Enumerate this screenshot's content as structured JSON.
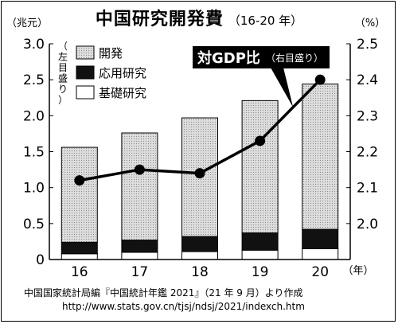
{
  "chart_data": {
    "type": "bar",
    "title": "中国研究開発費",
    "subtitle": "（16-20 年）",
    "categories": [
      "16",
      "17",
      "18",
      "19",
      "20"
    ],
    "x_unit": "（年）",
    "y_left": {
      "unit": "（兆元）",
      "range": [
        0,
        3.0
      ],
      "ticks": [
        "0",
        "0.5",
        "1.0",
        "1.5",
        "2.0",
        "2.5",
        "3.0"
      ],
      "scale_note": "（左目盛り）"
    },
    "y_right": {
      "unit": "（%）",
      "range": [
        1.9,
        2.5
      ],
      "ticks": [
        "2.0",
        "2.1",
        "2.2",
        "2.3",
        "2.4",
        "2.5"
      ]
    },
    "series": [
      {
        "name": "基礎研究",
        "kind": "stacked-bar",
        "color": "#ffffff",
        "values": [
          0.08,
          0.1,
          0.11,
          0.13,
          0.15
        ]
      },
      {
        "name": "応用研究",
        "kind": "stacked-bar",
        "color": "#111111",
        "values": [
          0.16,
          0.17,
          0.21,
          0.24,
          0.27
        ]
      },
      {
        "name": "開発",
        "kind": "stacked-bar",
        "color": "#cfcfcf",
        "values": [
          1.32,
          1.49,
          1.65,
          1.84,
          2.02
        ]
      },
      {
        "name": "対GDP比",
        "name_note": "（右目盛り）",
        "kind": "line",
        "axis": "right",
        "values": [
          2.12,
          2.15,
          2.14,
          2.23,
          2.4
        ]
      }
    ],
    "grid": false,
    "legend_position": "top-left"
  },
  "source": {
    "line1": "中国国家統計局編『中国統計年鑑 2021』（21 年 9 月）より作成",
    "line2": "http://www.stats.gov.cn/tjsj/ndsj/2021/indexch.htm"
  }
}
